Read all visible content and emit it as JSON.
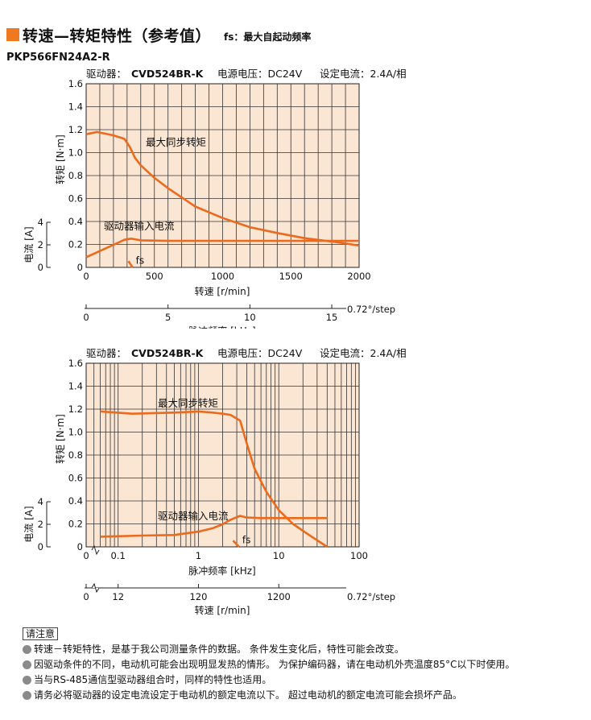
{
  "header": {
    "title": "转速—转矩特性（参考值）",
    "subtitle": "fs：最大自起动频率"
  },
  "model": "PKP566FN24A2-R",
  "colors": {
    "accent": "#f07820",
    "grid_fill": "#fbe6d4",
    "curve": "#ec6a1c"
  },
  "chart_data": [
    {
      "type": "line",
      "x_scale": "linear",
      "condition": {
        "driver_label": "驱动器：",
        "driver": "CVD524BR-K",
        "voltage": "电源电压：DC24V",
        "current_setting": "设定电流：2.4A/相"
      },
      "ylabel": "转矩 [N·m]",
      "xlabel": "转速 [r/min]",
      "ylim": [
        0,
        1.6
      ],
      "yticks": [
        "0",
        "0.2",
        "0.4",
        "0.6",
        "0.8",
        "1.0",
        "1.2",
        "1.4",
        "1.6"
      ],
      "xlim": [
        0,
        2000
      ],
      "xticks": [
        "0",
        "500",
        "1000",
        "1500",
        "2000"
      ],
      "current_axis": {
        "label": "电流 [A]",
        "ticks": [
          "0",
          "2",
          "4"
        ],
        "range": [
          0,
          4
        ]
      },
      "secondary_axis": {
        "label": "脉冲频率 [kHz]",
        "ticks": [
          "0",
          "5",
          "10",
          "15"
        ],
        "unit_note": "0.72°/step",
        "range": [
          0,
          16.67
        ]
      },
      "series": [
        {
          "name": "最大同步转矩",
          "x": [
            0,
            80,
            200,
            280,
            320,
            360,
            400,
            500,
            600,
            700,
            800,
            1000,
            1200,
            1400,
            1600,
            1800,
            2000
          ],
          "y": [
            1.16,
            1.18,
            1.15,
            1.12,
            1.05,
            0.95,
            0.89,
            0.78,
            0.69,
            0.61,
            0.53,
            0.43,
            0.35,
            0.3,
            0.255,
            0.225,
            0.19
          ]
        },
        {
          "name": "驱动器输入电流",
          "unit": "A",
          "x": [
            0,
            100,
            200,
            280,
            330,
            400,
            600,
            1000,
            1500,
            2000
          ],
          "y": [
            0.9,
            1.45,
            2.0,
            2.45,
            2.55,
            2.4,
            2.35,
            2.35,
            2.35,
            2.35
          ]
        }
      ],
      "fs_marker": {
        "label": "fs",
        "x": [
          310,
          340
        ],
        "y": [
          0.55,
          0
        ]
      }
    },
    {
      "type": "line",
      "x_scale": "log",
      "condition": {
        "driver_label": "驱动器：",
        "driver": "CVD524BR-K",
        "voltage": "电源电压：DC24V",
        "current_setting": "设定电流：2.4A/相"
      },
      "ylabel": "转矩 [N·m]",
      "xlabel": "脉冲频率 [kHz]",
      "ylim": [
        0,
        1.6
      ],
      "yticks": [
        "0",
        "0.2",
        "0.4",
        "0.6",
        "0.8",
        "1.0",
        "1.2",
        "1.4",
        "1.6"
      ],
      "xlim": [
        0.04,
        100
      ],
      "xticks": [
        "0.1",
        "1",
        "10",
        "100"
      ],
      "current_axis": {
        "label": "电流 [A]",
        "ticks": [
          "0",
          "2",
          "4"
        ],
        "range": [
          0,
          4
        ]
      },
      "secondary_axis": {
        "label": "转速 [r/min]",
        "ticks": [
          "0",
          "12",
          "120",
          "1200"
        ],
        "unit_note": "0.72°/step"
      },
      "series": [
        {
          "name": "最大同步转矩",
          "x": [
            0.06,
            0.15,
            0.5,
            1,
            1.5,
            2,
            2.5,
            3.3,
            4,
            5,
            7,
            10,
            15,
            22,
            40
          ],
          "y": [
            1.18,
            1.16,
            1.17,
            1.18,
            1.17,
            1.16,
            1.15,
            1.1,
            0.9,
            0.68,
            0.48,
            0.32,
            0.2,
            0.12,
            0.0
          ]
        },
        {
          "name": "驱动器输入电流",
          "unit": "A",
          "x": [
            0.06,
            0.2,
            0.5,
            1,
            1.5,
            2,
            2.5,
            3.3,
            4,
            6,
            10,
            20,
            40
          ],
          "y": [
            0.9,
            1.0,
            1.05,
            1.35,
            1.65,
            2.0,
            2.4,
            2.75,
            2.6,
            2.55,
            2.55,
            2.55,
            2.55
          ]
        }
      ],
      "fs_marker": {
        "label": "fs",
        "x": [
          2.7,
          3.2
        ],
        "y": [
          0.55,
          0
        ]
      }
    }
  ],
  "notes": {
    "heading": "请注意",
    "items": [
      "转速－转矩特性，是基于我公司测量条件的数据。 条件发生变化后，特性可能会改变。",
      "因驱动条件的不同，电动机可能会出现明显发热的情形。 为保护编码器，请在电动机外壳温度85°C以下时使用。",
      "当与RS-485通信型驱动器组合时，同样的特性也适用。",
      "请务必将驱动器的设定电流设定于电动机的额定电流以下。 超过电动机的额定电流可能会损坏产品。"
    ]
  }
}
